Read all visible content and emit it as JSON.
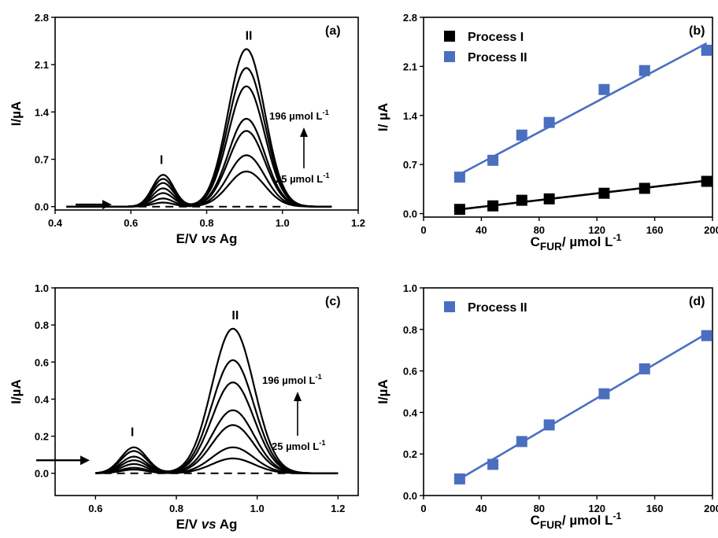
{
  "colors": {
    "black": "#000000",
    "blue": "#4a6fbf"
  },
  "chart_data": [
    {
      "id": "a",
      "type": "line",
      "panel_label": "(a)",
      "xlabel": {
        "pre": "E/V ",
        "italic": "vs",
        "post": " Ag"
      },
      "ylabel": "I/µA",
      "xlim": [
        0.4,
        1.2
      ],
      "ylim": [
        -0.05,
        2.8
      ],
      "xticks": [
        "0.4",
        "0.6",
        "0.8",
        "1.0",
        "1.2"
      ],
      "yticks": [
        "0.0",
        "0.7",
        "1.4",
        "2.1",
        "2.8"
      ],
      "peak_labels": [
        "I",
        "II"
      ],
      "conc_top": "196 µmol L-1",
      "conc_bottom": "25 µmol L-1",
      "peak1_center": 0.685,
      "peak2_center": 0.905,
      "x_range": [
        0.43,
        1.13
      ],
      "series": [
        {
          "p1": 0.47,
          "p2": 2.33
        },
        {
          "p1": 0.41,
          "p2": 2.05
        },
        {
          "p1": 0.35,
          "p2": 1.78
        },
        {
          "p1": 0.27,
          "p2": 1.3
        },
        {
          "p1": 0.2,
          "p2": 1.12
        },
        {
          "p1": 0.12,
          "p2": 0.76
        },
        {
          "p1": 0.06,
          "p2": 0.52
        }
      ],
      "blank": [
        0.55,
        1.01,
        0.0
      ]
    },
    {
      "id": "b",
      "type": "scatter",
      "panel_label": "(b)",
      "xlabel": "CFUR/ µmol L-1",
      "ylabel": "I/ µA",
      "xlim": [
        0,
        200
      ],
      "ylim": [
        -0.05,
        2.8
      ],
      "xticks": [
        "0",
        "40",
        "80",
        "120",
        "160",
        "200"
      ],
      "yticks": [
        "0.0",
        "0.7",
        "1.4",
        "2.1",
        "2.8"
      ],
      "series": [
        {
          "name": "Process I",
          "color": "#000000",
          "x": [
            25,
            48,
            68,
            87,
            125,
            153,
            196
          ],
          "y": [
            0.06,
            0.11,
            0.19,
            0.21,
            0.29,
            0.36,
            0.46
          ]
        },
        {
          "name": "Process II",
          "color": "#4a6fbf",
          "x": [
            25,
            48,
            68,
            87,
            125,
            153,
            196
          ],
          "y": [
            0.52,
            0.76,
            1.12,
            1.3,
            1.77,
            2.04,
            2.33
          ]
        }
      ],
      "fits": [
        {
          "color": "#000000",
          "x": [
            25,
            196
          ],
          "y": [
            0.06,
            0.47
          ]
        },
        {
          "color": "#4a6fbf",
          "x": [
            25,
            196
          ],
          "y": [
            0.56,
            2.43
          ]
        }
      ]
    },
    {
      "id": "c",
      "type": "line",
      "panel_label": "(c)",
      "xlabel": {
        "pre": "E/V ",
        "italic": "vs",
        "post": " Ag"
      },
      "ylabel": "I/µA",
      "xlim": [
        0.5,
        1.25
      ],
      "ylim": [
        -0.12,
        1.0
      ],
      "xticks": [
        "0.6",
        "0.8",
        "1.0",
        "1.2"
      ],
      "yticks": [
        "0.0",
        "0.2",
        "0.4",
        "0.6",
        "0.8",
        "1.0"
      ],
      "peak_labels": [
        "I",
        "II"
      ],
      "conc_top": "196 µmol L-1",
      "conc_bottom": "25 µmol L-1",
      "peak1_center": 0.695,
      "peak2_center": 0.94,
      "x_range": [
        0.6,
        1.2
      ],
      "series": [
        {
          "p1": 0.14,
          "p2": 0.78
        },
        {
          "p1": 0.12,
          "p2": 0.61
        },
        {
          "p1": 0.09,
          "p2": 0.49
        },
        {
          "p1": 0.07,
          "p2": 0.34
        },
        {
          "p1": 0.05,
          "p2": 0.26
        },
        {
          "p1": 0.03,
          "p2": 0.14
        },
        {
          "p1": 0.02,
          "p2": 0.08
        }
      ],
      "blank": [
        0.62,
        1.12,
        0.0
      ]
    },
    {
      "id": "d",
      "type": "scatter",
      "panel_label": "(d)",
      "xlabel": "CFUR/ µmol L-1",
      "ylabel": "I/µA",
      "xlim": [
        0,
        200
      ],
      "ylim": [
        0.0,
        1.0
      ],
      "xticks": [
        "0",
        "40",
        "80",
        "120",
        "160",
        "200"
      ],
      "yticks": [
        "0.0",
        "0.2",
        "0.4",
        "0.6",
        "0.8",
        "1.0"
      ],
      "series": [
        {
          "name": "Process II",
          "color": "#4a6fbf",
          "x": [
            25,
            48,
            68,
            87,
            125,
            153,
            196
          ],
          "y": [
            0.08,
            0.15,
            0.26,
            0.34,
            0.49,
            0.61,
            0.77
          ]
        }
      ],
      "fits": [
        {
          "color": "#4a6fbf",
          "x": [
            25,
            196
          ],
          "y": [
            0.08,
            0.78
          ]
        }
      ]
    }
  ]
}
